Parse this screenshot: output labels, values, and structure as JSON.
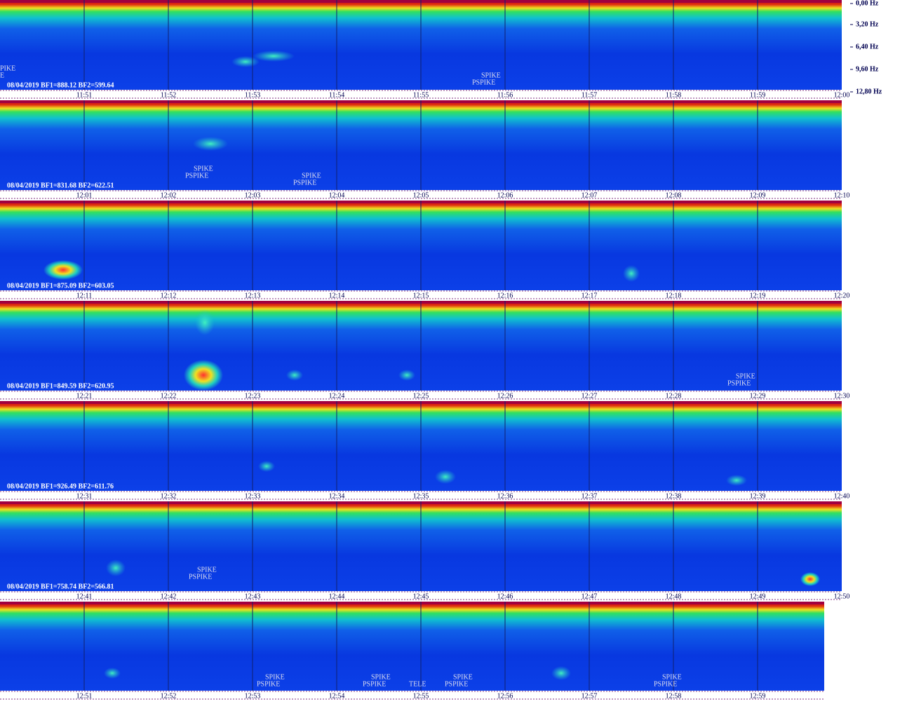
{
  "freq_axis": {
    "labels": [
      "0,00 Hz",
      "3,20 Hz",
      "6,40 Hz",
      "9,60 Hz",
      "12,80 Hz"
    ]
  },
  "strips": [
    {
      "header": "08/04/2019 BF1=888.12 BF2=599.64",
      "times": [
        "11:51",
        "11:52",
        "11:53",
        "11:54",
        "11:55",
        "11:56",
        "11:57",
        "11:58",
        "11:59",
        "12:00"
      ],
      "annotations": [
        "PIKE",
        "E",
        "SPIKE",
        "PSPIKE"
      ]
    },
    {
      "header": "08/04/2019 BF1=831.68 BF2=622.51",
      "times": [
        "12:01",
        "12:02",
        "12:03",
        "12:04",
        "12:05",
        "12:06",
        "12:07",
        "12:08",
        "12:09",
        "12:10"
      ],
      "annotations": [
        "SPIKE",
        "PSPIKE",
        "SPIKE",
        "PSPIKE"
      ]
    },
    {
      "header": "08/04/2019 BF1=875.09 BF2=603.05",
      "times": [
        "12:11",
        "12:12",
        "12:13",
        "12:14",
        "12:15",
        "12:16",
        "12:17",
        "12:18",
        "12:19",
        "12:20"
      ],
      "annotations": []
    },
    {
      "header": "08/04/2019 BF1=849.59 BF2=620.95",
      "times": [
        "12:21",
        "12:22",
        "12:23",
        "12:24",
        "12:25",
        "12:26",
        "12:27",
        "12:28",
        "12:29",
        "12:30"
      ],
      "annotations": [
        "SPIKE",
        "PSPIKE"
      ]
    },
    {
      "header": "08/04/2019 BF1=926.49 BF2=611.76",
      "times": [
        "12:31",
        "12:32",
        "12:33",
        "12:34",
        "12:35",
        "12:36",
        "12:37",
        "12:38",
        "12:39",
        "12:40"
      ],
      "annotations": []
    },
    {
      "header": "08/04/2019 BF1=758.74 BF2=566.81",
      "times": [
        "12:41",
        "12:42",
        "12:43",
        "12:44",
        "12:45",
        "12:46",
        "12:47",
        "12:48",
        "12:49",
        "12:50"
      ],
      "annotations": [
        "SPIKE",
        "PSPIKE"
      ]
    },
    {
      "header": "",
      "times": [
        "12:51",
        "12:52",
        "12:53",
        "12:54",
        "12:55",
        "12:56",
        "12:57",
        "12:58",
        "12:59"
      ],
      "annotations": [
        "SPIKE",
        "PSPIKE",
        "SPIKE",
        "PSPIKE",
        "TELE",
        "SPIKE",
        "PSPIKE",
        "SPIKE",
        "PSPIKE"
      ]
    }
  ]
}
